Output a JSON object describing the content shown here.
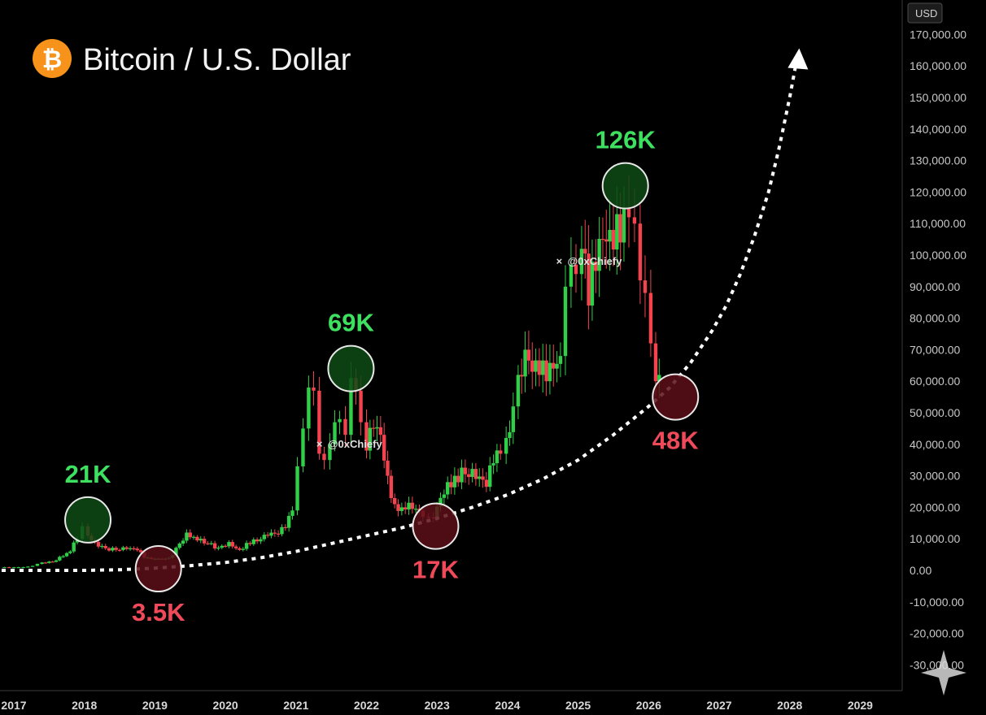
{
  "header": {
    "title": "Bitcoin / U.S. Dollar",
    "logo_icon": "bitcoin-logo-icon",
    "logo_glyph": "₿",
    "currency_badge": "USD"
  },
  "colors": {
    "background": "#000000",
    "up": "#2fd047",
    "down": "#f2434f",
    "peak_circle": "#0e4a14",
    "bottom_circle": "#5c0f18",
    "logo": "#f7931a",
    "curve": "#ffffff"
  },
  "watermarks": [
    {
      "text": "@0xChiefy",
      "x": "2021.45",
      "y": 40000
    },
    {
      "text": "@0xChiefy",
      "x": "2024.85",
      "y": 98000
    }
  ],
  "chart_data": {
    "type": "candlestick",
    "title": "Bitcoin / U.S. Dollar",
    "ylabel": "USD",
    "xlabel": "",
    "ylim": [
      -30000,
      170000
    ],
    "xlim": [
      "2016.7",
      "2029.1"
    ],
    "grid": false,
    "y_ticks": [
      "170,000.00",
      "160,000.00",
      "150,000.00",
      "140,000.00",
      "130,000.00",
      "120,000.00",
      "110,000.00",
      "100,000.00",
      "90,000.00",
      "80,000.00",
      "70,000.00",
      "60,000.00",
      "50,000.00",
      "40,000.00",
      "30,000.00",
      "20,000.00",
      "10,000.00",
      "0.00",
      "-10,000.00",
      "-20,000.00",
      "-30,000.00"
    ],
    "x_ticks": [
      "2017",
      "2018",
      "2019",
      "2020",
      "2021",
      "2022",
      "2023",
      "2024",
      "2025",
      "2026",
      "2027",
      "2028",
      "2029"
    ],
    "close_series": {
      "x": [
        "2016.80",
        "2017.00",
        "2017.20",
        "2017.40",
        "2017.55",
        "2017.70",
        "2017.80",
        "2017.90",
        "2017.97",
        "2018.05",
        "2018.15",
        "2018.30",
        "2018.45",
        "2018.60",
        "2018.75",
        "2018.85",
        "2018.95",
        "2019.05",
        "2019.20",
        "2019.35",
        "2019.45",
        "2019.50",
        "2019.60",
        "2019.75",
        "2019.90",
        "2020.05",
        "2020.20",
        "2020.30",
        "2020.45",
        "2020.60",
        "2020.75",
        "2020.85",
        "2020.95",
        "2021.02",
        "2021.10",
        "2021.18",
        "2021.25",
        "2021.33",
        "2021.40",
        "2021.48",
        "2021.55",
        "2021.62",
        "2021.70",
        "2021.78",
        "2021.85",
        "2021.92",
        "2022.00",
        "2022.10",
        "2022.20",
        "2022.30",
        "2022.40",
        "2022.50",
        "2022.65",
        "2022.80",
        "2022.88",
        "2022.95",
        "2023.05",
        "2023.15",
        "2023.25",
        "2023.40",
        "2023.55",
        "2023.70",
        "2023.80",
        "2023.90",
        "2023.98",
        "2024.08",
        "2024.15",
        "2024.25",
        "2024.35",
        "2024.45",
        "2024.55",
        "2024.65",
        "2024.75",
        "2024.82",
        "2024.90",
        "2024.97",
        "2025.05",
        "2025.15",
        "2025.25",
        "2025.35",
        "2025.45",
        "2025.55",
        "2025.65",
        "2025.72",
        "2025.80",
        "2025.88",
        "2025.95",
        "2026.03",
        "2026.10",
        "2026.15"
      ],
      "values": [
        1000,
        1000,
        1200,
        2500,
        2700,
        4500,
        6000,
        10000,
        14000,
        11000,
        9000,
        7000,
        6500,
        6800,
        6400,
        4000,
        3600,
        3700,
        4000,
        8500,
        12000,
        10500,
        9500,
        8500,
        7200,
        9000,
        6500,
        8700,
        9200,
        11000,
        11500,
        13500,
        19000,
        33000,
        45000,
        58000,
        57000,
        37000,
        35000,
        40000,
        47000,
        48000,
        43000,
        61000,
        57000,
        47000,
        38000,
        45000,
        43000,
        30000,
        21000,
        20000,
        19500,
        17000,
        16800,
        16500,
        23000,
        28000,
        30000,
        30500,
        29000,
        26500,
        34000,
        37000,
        42000,
        52000,
        62000,
        70000,
        63000,
        62000,
        60000,
        64000,
        68000,
        90000,
        97000,
        94000,
        102000,
        84000,
        95000,
        105000,
        108000,
        113000,
        115000,
        112000,
        110000,
        92000,
        88000,
        72000,
        60000,
        62000
      ]
    },
    "annotations": [
      {
        "label": "21K",
        "kind": "peak",
        "x": "2018.05",
        "y": 16000
      },
      {
        "label": "69K",
        "kind": "peak",
        "x": "2021.78",
        "y": 64000
      },
      {
        "label": "126K",
        "kind": "peak",
        "x": "2025.67",
        "y": 122000
      },
      {
        "label": "3.5K",
        "kind": "bottom",
        "x": "2019.05",
        "y": 500
      },
      {
        "label": "17K",
        "kind": "bottom",
        "x": "2022.98",
        "y": 14000
      },
      {
        "label": "48K",
        "kind": "bottom",
        "x": "2026.38",
        "y": 55000
      }
    ],
    "trend_curve": {
      "style": "dotted",
      "arrow": "up",
      "x": [
        "2016.70",
        "2017.50",
        "2018.00",
        "2018.50",
        "2019.00",
        "2019.50",
        "2020.00",
        "2020.50",
        "2021.00",
        "2021.50",
        "2022.00",
        "2022.50",
        "2023.00",
        "2023.50",
        "2024.00",
        "2024.50",
        "2025.00",
        "2025.50",
        "2026.00",
        "2026.30",
        "2026.60",
        "2026.90",
        "2027.10",
        "2027.30",
        "2027.50",
        "2027.70",
        "2027.85",
        "2028.00",
        "2028.10"
      ],
      "y": [
        0,
        0,
        0,
        200,
        700,
        1500,
        2500,
        4000,
        6000,
        8500,
        11000,
        13500,
        16500,
        20000,
        24000,
        29000,
        35000,
        43000,
        52000,
        58000,
        66000,
        76000,
        84000,
        94000,
        106000,
        120000,
        134000,
        150000,
        162000
      ]
    }
  }
}
